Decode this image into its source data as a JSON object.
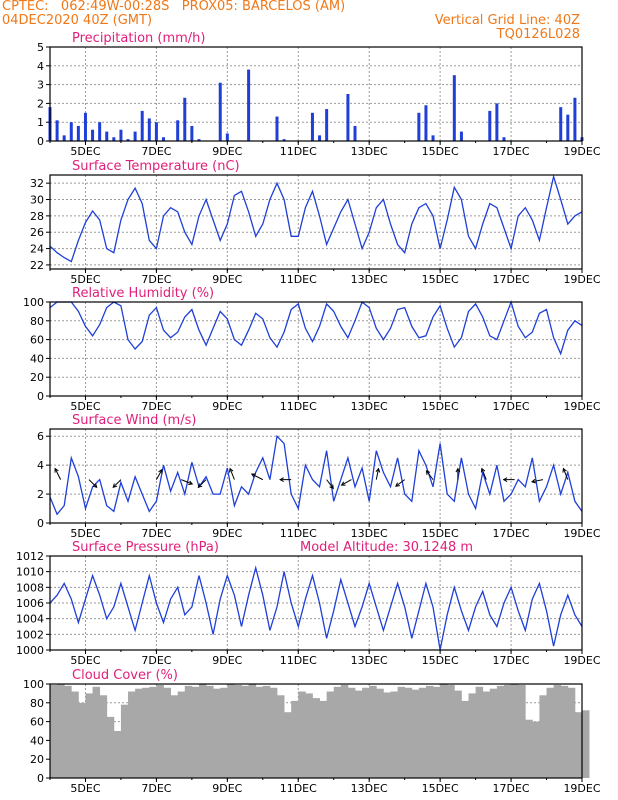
{
  "header": {
    "line1_left": "CPTEC:   062:49W-00:28S   PROX05: BARCELOS (AM)",
    "line2_left": "04DEC2020 40Z (GMT)",
    "line2_right": "Vertical Grid Line: 40Z",
    "line3_right": "TQ0126L028"
  },
  "colors": {
    "header_text": "#f07818",
    "title_text": "#e0207a",
    "series": "#1f3fd8",
    "cloud_fill": "#a8a8a8",
    "grid": "#9a9a9a"
  },
  "x_axis": {
    "start": "04DEC",
    "end": "19DEC",
    "tick_labels": [
      "5DEC",
      "7DEC",
      "9DEC",
      "11DEC",
      "13DEC",
      "15DEC",
      "17DEC",
      "19DEC"
    ]
  },
  "chart_data": [
    {
      "id": "precip",
      "type": "bar",
      "title": "Precipitation (mm/h)",
      "ylim": [
        0,
        5
      ],
      "yticks": [
        0,
        1,
        2,
        3,
        4,
        5
      ],
      "x": [
        "04.0",
        "04.2",
        "04.4",
        "04.6",
        "04.8",
        "05.0",
        "05.2",
        "05.4",
        "05.6",
        "05.8",
        "06.0",
        "06.2",
        "06.4",
        "06.6",
        "06.8",
        "07.0",
        "07.2",
        "07.4",
        "07.6",
        "07.8",
        "08.0",
        "08.2",
        "08.4",
        "08.6",
        "08.8",
        "09.0",
        "09.2",
        "09.4",
        "09.6",
        "09.8",
        "10.0",
        "10.2",
        "10.4",
        "10.6",
        "10.8",
        "11.0",
        "11.2",
        "11.4",
        "11.6",
        "11.8",
        "12.0",
        "12.2",
        "12.4",
        "12.6",
        "12.8",
        "13.0",
        "13.2",
        "13.4",
        "13.6",
        "13.8",
        "14.0",
        "14.2",
        "14.4",
        "14.6",
        "14.8",
        "15.0",
        "15.2",
        "15.4",
        "15.6",
        "15.8",
        "16.0",
        "16.2",
        "16.4",
        "16.6",
        "16.8",
        "17.0",
        "17.2",
        "17.4",
        "17.6",
        "17.8",
        "18.0",
        "18.2",
        "18.4",
        "18.6",
        "18.8",
        "19.0"
      ],
      "values": [
        1.8,
        1.1,
        0.3,
        1.0,
        0.8,
        1.5,
        0.6,
        1.0,
        0.5,
        0.2,
        0.6,
        0.1,
        0.5,
        1.6,
        1.2,
        1.0,
        0.2,
        0.0,
        1.1,
        2.3,
        0.8,
        0.1,
        0.0,
        0.0,
        3.1,
        0.4,
        0.0,
        0.0,
        3.8,
        0.0,
        0.0,
        0.0,
        1.3,
        0.1,
        0.0,
        0.0,
        0.0,
        1.5,
        0.3,
        1.7,
        0.0,
        0.0,
        2.5,
        0.8,
        0.0,
        0.0,
        0.0,
        0.0,
        0.0,
        0.0,
        0.0,
        0.0,
        1.5,
        1.9,
        0.3,
        0.0,
        0.0,
        3.5,
        0.5,
        0.0,
        0.0,
        0.0,
        1.6,
        2.0,
        0.2,
        0.0,
        0.0,
        0.0,
        0.0,
        0.0,
        0.0,
        0.0,
        1.8,
        1.4,
        2.3,
        0.2
      ]
    },
    {
      "id": "temp",
      "type": "line",
      "title": "Surface Temperature (nC)",
      "ylim": [
        21.5,
        33
      ],
      "yticks": [
        22,
        24,
        26,
        28,
        30,
        32
      ],
      "x": [
        "04.0",
        "04.2",
        "04.4",
        "04.6",
        "04.8",
        "05.0",
        "05.2",
        "05.4",
        "05.6",
        "05.8",
        "06.0",
        "06.2",
        "06.4",
        "06.6",
        "06.8",
        "07.0",
        "07.2",
        "07.4",
        "07.6",
        "07.8",
        "08.0",
        "08.2",
        "08.4",
        "08.6",
        "08.8",
        "09.0",
        "09.2",
        "09.4",
        "09.6",
        "09.8",
        "10.0",
        "10.2",
        "10.4",
        "10.6",
        "10.8",
        "11.0",
        "11.2",
        "11.4",
        "11.6",
        "11.8",
        "12.0",
        "12.2",
        "12.4",
        "12.6",
        "12.8",
        "13.0",
        "13.2",
        "13.4",
        "13.6",
        "13.8",
        "14.0",
        "14.2",
        "14.4",
        "14.6",
        "14.8",
        "15.0",
        "15.2",
        "15.4",
        "15.6",
        "15.8",
        "16.0",
        "16.2",
        "16.4",
        "16.6",
        "16.8",
        "17.0",
        "17.2",
        "17.4",
        "17.6",
        "17.8",
        "18.0",
        "18.2",
        "18.4",
        "18.6",
        "18.8",
        "19.0"
      ],
      "values": [
        24.3,
        23.5,
        22.9,
        22.4,
        25.0,
        27.2,
        28.6,
        27.5,
        24.0,
        23.5,
        27.5,
        30.0,
        31.4,
        29.5,
        25.0,
        24.0,
        28.0,
        29.0,
        28.5,
        26.0,
        24.5,
        28.0,
        30.0,
        27.5,
        25.0,
        27.0,
        30.5,
        31.0,
        28.5,
        25.5,
        27.0,
        30.0,
        32.0,
        30.0,
        25.5,
        25.5,
        29.0,
        31.0,
        28.0,
        24.5,
        26.5,
        28.5,
        30.0,
        27.0,
        24.0,
        26.0,
        29.0,
        30.0,
        27.0,
        24.5,
        23.5,
        27.0,
        29.0,
        29.5,
        28.0,
        24.0,
        27.5,
        31.5,
        30.0,
        25.5,
        24.0,
        27.0,
        29.5,
        29.0,
        26.5,
        24.0,
        28.0,
        29.0,
        27.5,
        25.0,
        29.0,
        32.8,
        30.0,
        27.0,
        28.0,
        28.5
      ]
    },
    {
      "id": "rh",
      "type": "line",
      "title": "Relative Humidity (%)",
      "ylim": [
        0,
        100
      ],
      "yticks": [
        0,
        20,
        40,
        60,
        80,
        100
      ],
      "x": [
        "04.0",
        "04.2",
        "04.4",
        "04.6",
        "04.8",
        "05.0",
        "05.2",
        "05.4",
        "05.6",
        "05.8",
        "06.0",
        "06.2",
        "06.4",
        "06.6",
        "06.8",
        "07.0",
        "07.2",
        "07.4",
        "07.6",
        "07.8",
        "08.0",
        "08.2",
        "08.4",
        "08.6",
        "08.8",
        "09.0",
        "09.2",
        "09.4",
        "09.6",
        "09.8",
        "10.0",
        "10.2",
        "10.4",
        "10.6",
        "10.8",
        "11.0",
        "11.2",
        "11.4",
        "11.6",
        "11.8",
        "12.0",
        "12.2",
        "12.4",
        "12.6",
        "12.8",
        "13.0",
        "13.2",
        "13.4",
        "13.6",
        "13.8",
        "14.0",
        "14.2",
        "14.4",
        "14.6",
        "14.8",
        "15.0",
        "15.2",
        "15.4",
        "15.6",
        "15.8",
        "16.0",
        "16.2",
        "16.4",
        "16.6",
        "16.8",
        "17.0",
        "17.2",
        "17.4",
        "17.6",
        "17.8",
        "18.0",
        "18.2",
        "18.4",
        "18.6",
        "18.8",
        "19.0"
      ],
      "values": [
        94,
        100,
        100,
        100,
        90,
        74,
        64,
        76,
        94,
        100,
        96,
        60,
        50,
        58,
        86,
        94,
        70,
        62,
        68,
        84,
        92,
        70,
        54,
        72,
        90,
        82,
        60,
        54,
        70,
        88,
        82,
        62,
        52,
        68,
        92,
        98,
        72,
        58,
        74,
        98,
        90,
        74,
        62,
        80,
        100,
        94,
        72,
        60,
        72,
        92,
        94,
        74,
        62,
        64,
        84,
        96,
        72,
        52,
        62,
        90,
        98,
        84,
        64,
        60,
        80,
        100,
        74,
        62,
        68,
        88,
        92,
        62,
        45,
        70,
        80,
        75
      ]
    },
    {
      "id": "wind",
      "type": "line",
      "title": "Surface Wind (m/s)",
      "ylim": [
        0,
        6.5
      ],
      "yticks": [
        0,
        2,
        4,
        6
      ],
      "x": [
        "04.0",
        "04.2",
        "04.4",
        "04.6",
        "04.8",
        "05.0",
        "05.2",
        "05.4",
        "05.6",
        "05.8",
        "06.0",
        "06.2",
        "06.4",
        "06.6",
        "06.8",
        "07.0",
        "07.2",
        "07.4",
        "07.6",
        "07.8",
        "08.0",
        "08.2",
        "08.4",
        "08.6",
        "08.8",
        "09.0",
        "09.2",
        "09.4",
        "09.6",
        "09.8",
        "10.0",
        "10.2",
        "10.4",
        "10.6",
        "10.8",
        "11.0",
        "11.2",
        "11.4",
        "11.6",
        "11.8",
        "12.0",
        "12.2",
        "12.4",
        "12.6",
        "12.8",
        "13.0",
        "13.2",
        "13.4",
        "13.6",
        "13.8",
        "14.0",
        "14.2",
        "14.4",
        "14.6",
        "14.8",
        "15.0",
        "15.2",
        "15.4",
        "15.6",
        "15.8",
        "16.0",
        "16.2",
        "16.4",
        "16.6",
        "16.8",
        "17.0",
        "17.2",
        "17.4",
        "17.6",
        "17.8",
        "18.0",
        "18.2",
        "18.4",
        "18.6",
        "18.8",
        "19.0"
      ],
      "values": [
        1.8,
        0.6,
        1.2,
        4.5,
        3.2,
        1.0,
        2.5,
        3.0,
        1.2,
        0.8,
        2.8,
        1.5,
        3.2,
        2.0,
        0.8,
        1.5,
        4.0,
        2.2,
        3.5,
        2.0,
        4.2,
        2.5,
        3.2,
        2.0,
        2.0,
        3.8,
        1.2,
        2.5,
        2.0,
        3.5,
        4.5,
        3.0,
        6.0,
        5.5,
        2.0,
        1.0,
        4.0,
        3.0,
        2.5,
        5.0,
        1.5,
        3.0,
        4.5,
        2.5,
        3.8,
        1.5,
        5.0,
        3.5,
        2.5,
        4.5,
        2.0,
        1.5,
        5.0,
        4.0,
        2.5,
        5.5,
        2.0,
        1.5,
        4.5,
        2.0,
        1.0,
        3.5,
        2.0,
        4.0,
        1.5,
        2.0,
        3.0,
        2.5,
        4.5,
        1.5,
        2.5,
        4.0,
        2.0,
        3.5,
        1.5,
        0.8
      ],
      "arrows": [
        {
          "x": "04.3",
          "dx": -0.5,
          "dy": -1
        },
        {
          "x": "05.1",
          "dx": 0.7,
          "dy": 0.7
        },
        {
          "x": "06.0",
          "dx": -0.7,
          "dy": 0.7
        },
        {
          "x": "07.0",
          "dx": 0.5,
          "dy": -0.9
        },
        {
          "x": "07.7",
          "dx": 1,
          "dy": 0.4
        },
        {
          "x": "08.4",
          "dx": -0.7,
          "dy": 0.7
        },
        {
          "x": "09.2",
          "dx": -0.4,
          "dy": -1
        },
        {
          "x": "10.0",
          "dx": -1,
          "dy": -0.5
        },
        {
          "x": "10.8",
          "dx": -1,
          "dy": 0
        },
        {
          "x": "11.8",
          "dx": 0.6,
          "dy": 0.8
        },
        {
          "x": "12.5",
          "dx": -0.9,
          "dy": 0.5
        },
        {
          "x": "13.2",
          "dx": 0.2,
          "dy": -1
        },
        {
          "x": "14.0",
          "dx": -0.8,
          "dy": 0.6
        },
        {
          "x": "14.8",
          "dx": -0.6,
          "dy": -0.8
        },
        {
          "x": "15.5",
          "dx": 0,
          "dy": -1
        },
        {
          "x": "16.3",
          "dx": -0.4,
          "dy": -1
        },
        {
          "x": "17.1",
          "dx": -1,
          "dy": 0
        },
        {
          "x": "17.9",
          "dx": -1,
          "dy": 0.2
        },
        {
          "x": "18.6",
          "dx": -0.4,
          "dy": -1
        }
      ]
    },
    {
      "id": "pres",
      "type": "line",
      "title": "Surface Pressure (hPa)",
      "annotation": "Model Altitude: 30.1248 m",
      "ylim": [
        1000,
        1012
      ],
      "yticks": [
        1000,
        1002,
        1004,
        1006,
        1008,
        1010,
        1012
      ],
      "x": [
        "04.0",
        "04.2",
        "04.4",
        "04.6",
        "04.8",
        "05.0",
        "05.2",
        "05.4",
        "05.6",
        "05.8",
        "06.0",
        "06.2",
        "06.4",
        "06.6",
        "06.8",
        "07.0",
        "07.2",
        "07.4",
        "07.6",
        "07.8",
        "08.0",
        "08.2",
        "08.4",
        "08.6",
        "08.8",
        "09.0",
        "09.2",
        "09.4",
        "09.6",
        "09.8",
        "10.0",
        "10.2",
        "10.4",
        "10.6",
        "10.8",
        "11.0",
        "11.2",
        "11.4",
        "11.6",
        "11.8",
        "12.0",
        "12.2",
        "12.4",
        "12.6",
        "12.8",
        "13.0",
        "13.2",
        "13.4",
        "13.6",
        "13.8",
        "14.0",
        "14.2",
        "14.4",
        "14.6",
        "14.8",
        "15.0",
        "15.2",
        "15.4",
        "15.6",
        "15.8",
        "16.0",
        "16.2",
        "16.4",
        "16.6",
        "16.8",
        "17.0",
        "17.2",
        "17.4",
        "17.6",
        "17.8",
        "18.0",
        "18.2",
        "18.4",
        "18.6",
        "18.8",
        "19.0"
      ],
      "values": [
        1006.0,
        1007.0,
        1008.5,
        1006.5,
        1003.5,
        1006.5,
        1009.5,
        1007.0,
        1004.0,
        1005.5,
        1008.5,
        1005.5,
        1002.5,
        1006.0,
        1009.5,
        1006.0,
        1003.5,
        1006.5,
        1008.0,
        1004.5,
        1005.5,
        1009.5,
        1006.0,
        1002.0,
        1006.5,
        1009.5,
        1007.0,
        1003.0,
        1007.0,
        1010.5,
        1007.0,
        1002.5,
        1005.5,
        1010.0,
        1006.0,
        1003.0,
        1006.5,
        1009.5,
        1006.0,
        1001.5,
        1005.0,
        1009.0,
        1006.0,
        1003.0,
        1005.5,
        1008.5,
        1005.5,
        1002.5,
        1005.5,
        1008.5,
        1005.5,
        1001.5,
        1005.0,
        1008.5,
        1005.5,
        1000.0,
        1004.5,
        1008.0,
        1005.0,
        1002.5,
        1005.5,
        1007.5,
        1004.5,
        1003.0,
        1006.0,
        1008.0,
        1005.0,
        1002.5,
        1006.5,
        1008.5,
        1005.0,
        1000.5,
        1004.5,
        1007.0,
        1004.5,
        1003.0
      ]
    },
    {
      "id": "cloud",
      "type": "area",
      "title": "Cloud Cover (%)",
      "ylim": [
        0,
        100
      ],
      "yticks": [
        0,
        20,
        40,
        60,
        80,
        100
      ],
      "x": [
        "04.0",
        "04.2",
        "04.4",
        "04.6",
        "04.8",
        "05.0",
        "05.2",
        "05.4",
        "05.6",
        "05.8",
        "06.0",
        "06.2",
        "06.4",
        "06.6",
        "06.8",
        "07.0",
        "07.2",
        "07.4",
        "07.6",
        "07.8",
        "08.0",
        "08.2",
        "08.4",
        "08.6",
        "08.8",
        "09.0",
        "09.2",
        "09.4",
        "09.6",
        "09.8",
        "10.0",
        "10.2",
        "10.4",
        "10.6",
        "10.8",
        "11.0",
        "11.2",
        "11.4",
        "11.6",
        "11.8",
        "12.0",
        "12.2",
        "12.4",
        "12.6",
        "12.8",
        "13.0",
        "13.2",
        "13.4",
        "13.6",
        "13.8",
        "14.0",
        "14.2",
        "14.4",
        "14.6",
        "14.8",
        "15.0",
        "15.2",
        "15.4",
        "15.6",
        "15.8",
        "16.0",
        "16.2",
        "16.4",
        "16.6",
        "16.8",
        "17.0",
        "17.2",
        "17.4",
        "17.6",
        "17.8",
        "18.0",
        "18.2",
        "18.4",
        "18.6",
        "18.8",
        "19.0"
      ],
      "values": [
        99,
        100,
        98,
        92,
        80,
        90,
        97,
        88,
        65,
        50,
        78,
        92,
        95,
        96,
        97,
        99,
        96,
        88,
        92,
        98,
        97,
        100,
        98,
        95,
        96,
        100,
        99,
        98,
        100,
        97,
        98,
        96,
        88,
        70,
        82,
        92,
        90,
        85,
        82,
        92,
        97,
        99,
        96,
        93,
        96,
        98,
        95,
        91,
        92,
        97,
        96,
        94,
        96,
        98,
        97,
        100,
        99,
        93,
        82,
        90,
        97,
        92,
        95,
        98,
        99,
        100,
        99,
        62,
        60,
        88,
        96,
        99,
        98,
        96,
        70,
        72
      ]
    }
  ]
}
